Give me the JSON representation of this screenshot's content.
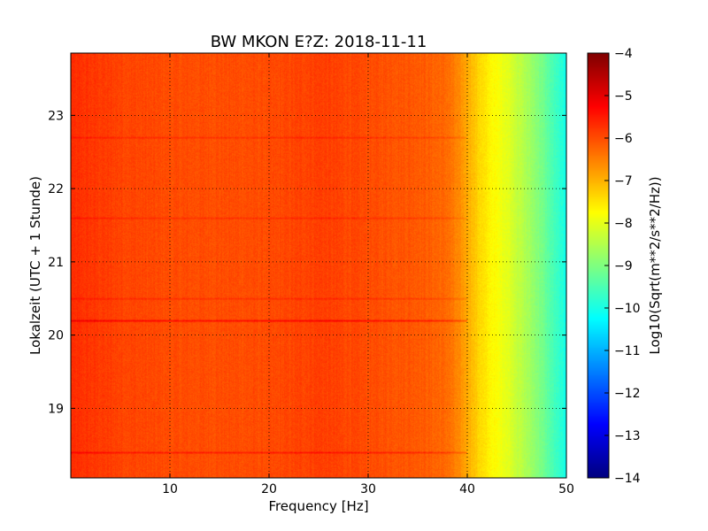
{
  "chart_data": {
    "type": "heatmap",
    "title": "BW MKON E?Z: 2018-11-11",
    "xlabel": "Frequency [Hz]",
    "ylabel": "Lokalzeit (UTC + 1 Stunde)",
    "xlim": [
      0,
      50
    ],
    "ylim": [
      23.85,
      18.05
    ],
    "x_ticks": [
      10,
      20,
      30,
      40,
      50
    ],
    "x_tick_labels": [
      "10",
      "20",
      "30",
      "40",
      "50"
    ],
    "y_ticks": [
      19,
      20,
      21,
      22,
      23
    ],
    "y_tick_labels": [
      "19",
      "20",
      "21",
      "22",
      "23"
    ],
    "grid": true,
    "colorbar": {
      "label": "Log10(Sqrt(m**2/s**2/Hz))",
      "range": [
        -14,
        -4
      ],
      "ticks": [
        -4,
        -5,
        -6,
        -7,
        -8,
        -9,
        -10,
        -11,
        -12,
        -13,
        -14
      ],
      "tick_labels": [
        "−4",
        "−5",
        "−6",
        "−7",
        "−8",
        "−9",
        "−10",
        "−11",
        "−12",
        "−13",
        "−14"
      ],
      "colormap": "jet"
    },
    "frequency_profile_hz": [
      0,
      5,
      10,
      15,
      20,
      25,
      30,
      35,
      38,
      40,
      41,
      42,
      43,
      44,
      45,
      46,
      47,
      48,
      49,
      50
    ],
    "frequency_profile_level": [
      -5.7,
      -5.9,
      -6.0,
      -6.0,
      -6.0,
      -5.85,
      -6.0,
      -6.1,
      -6.3,
      -6.9,
      -7.3,
      -7.6,
      -7.8,
      -8.0,
      -8.3,
      -8.6,
      -8.9,
      -9.3,
      -9.7,
      -10.1
    ],
    "bands": [
      {
        "hour": 18.4,
        "level": -5.5
      },
      {
        "hour": 20.2,
        "level": -5.3
      },
      {
        "hour": 20.5,
        "level": -5.7
      },
      {
        "hour": 21.6,
        "level": -5.7
      },
      {
        "hour": 22.7,
        "level": -5.7
      }
    ]
  }
}
